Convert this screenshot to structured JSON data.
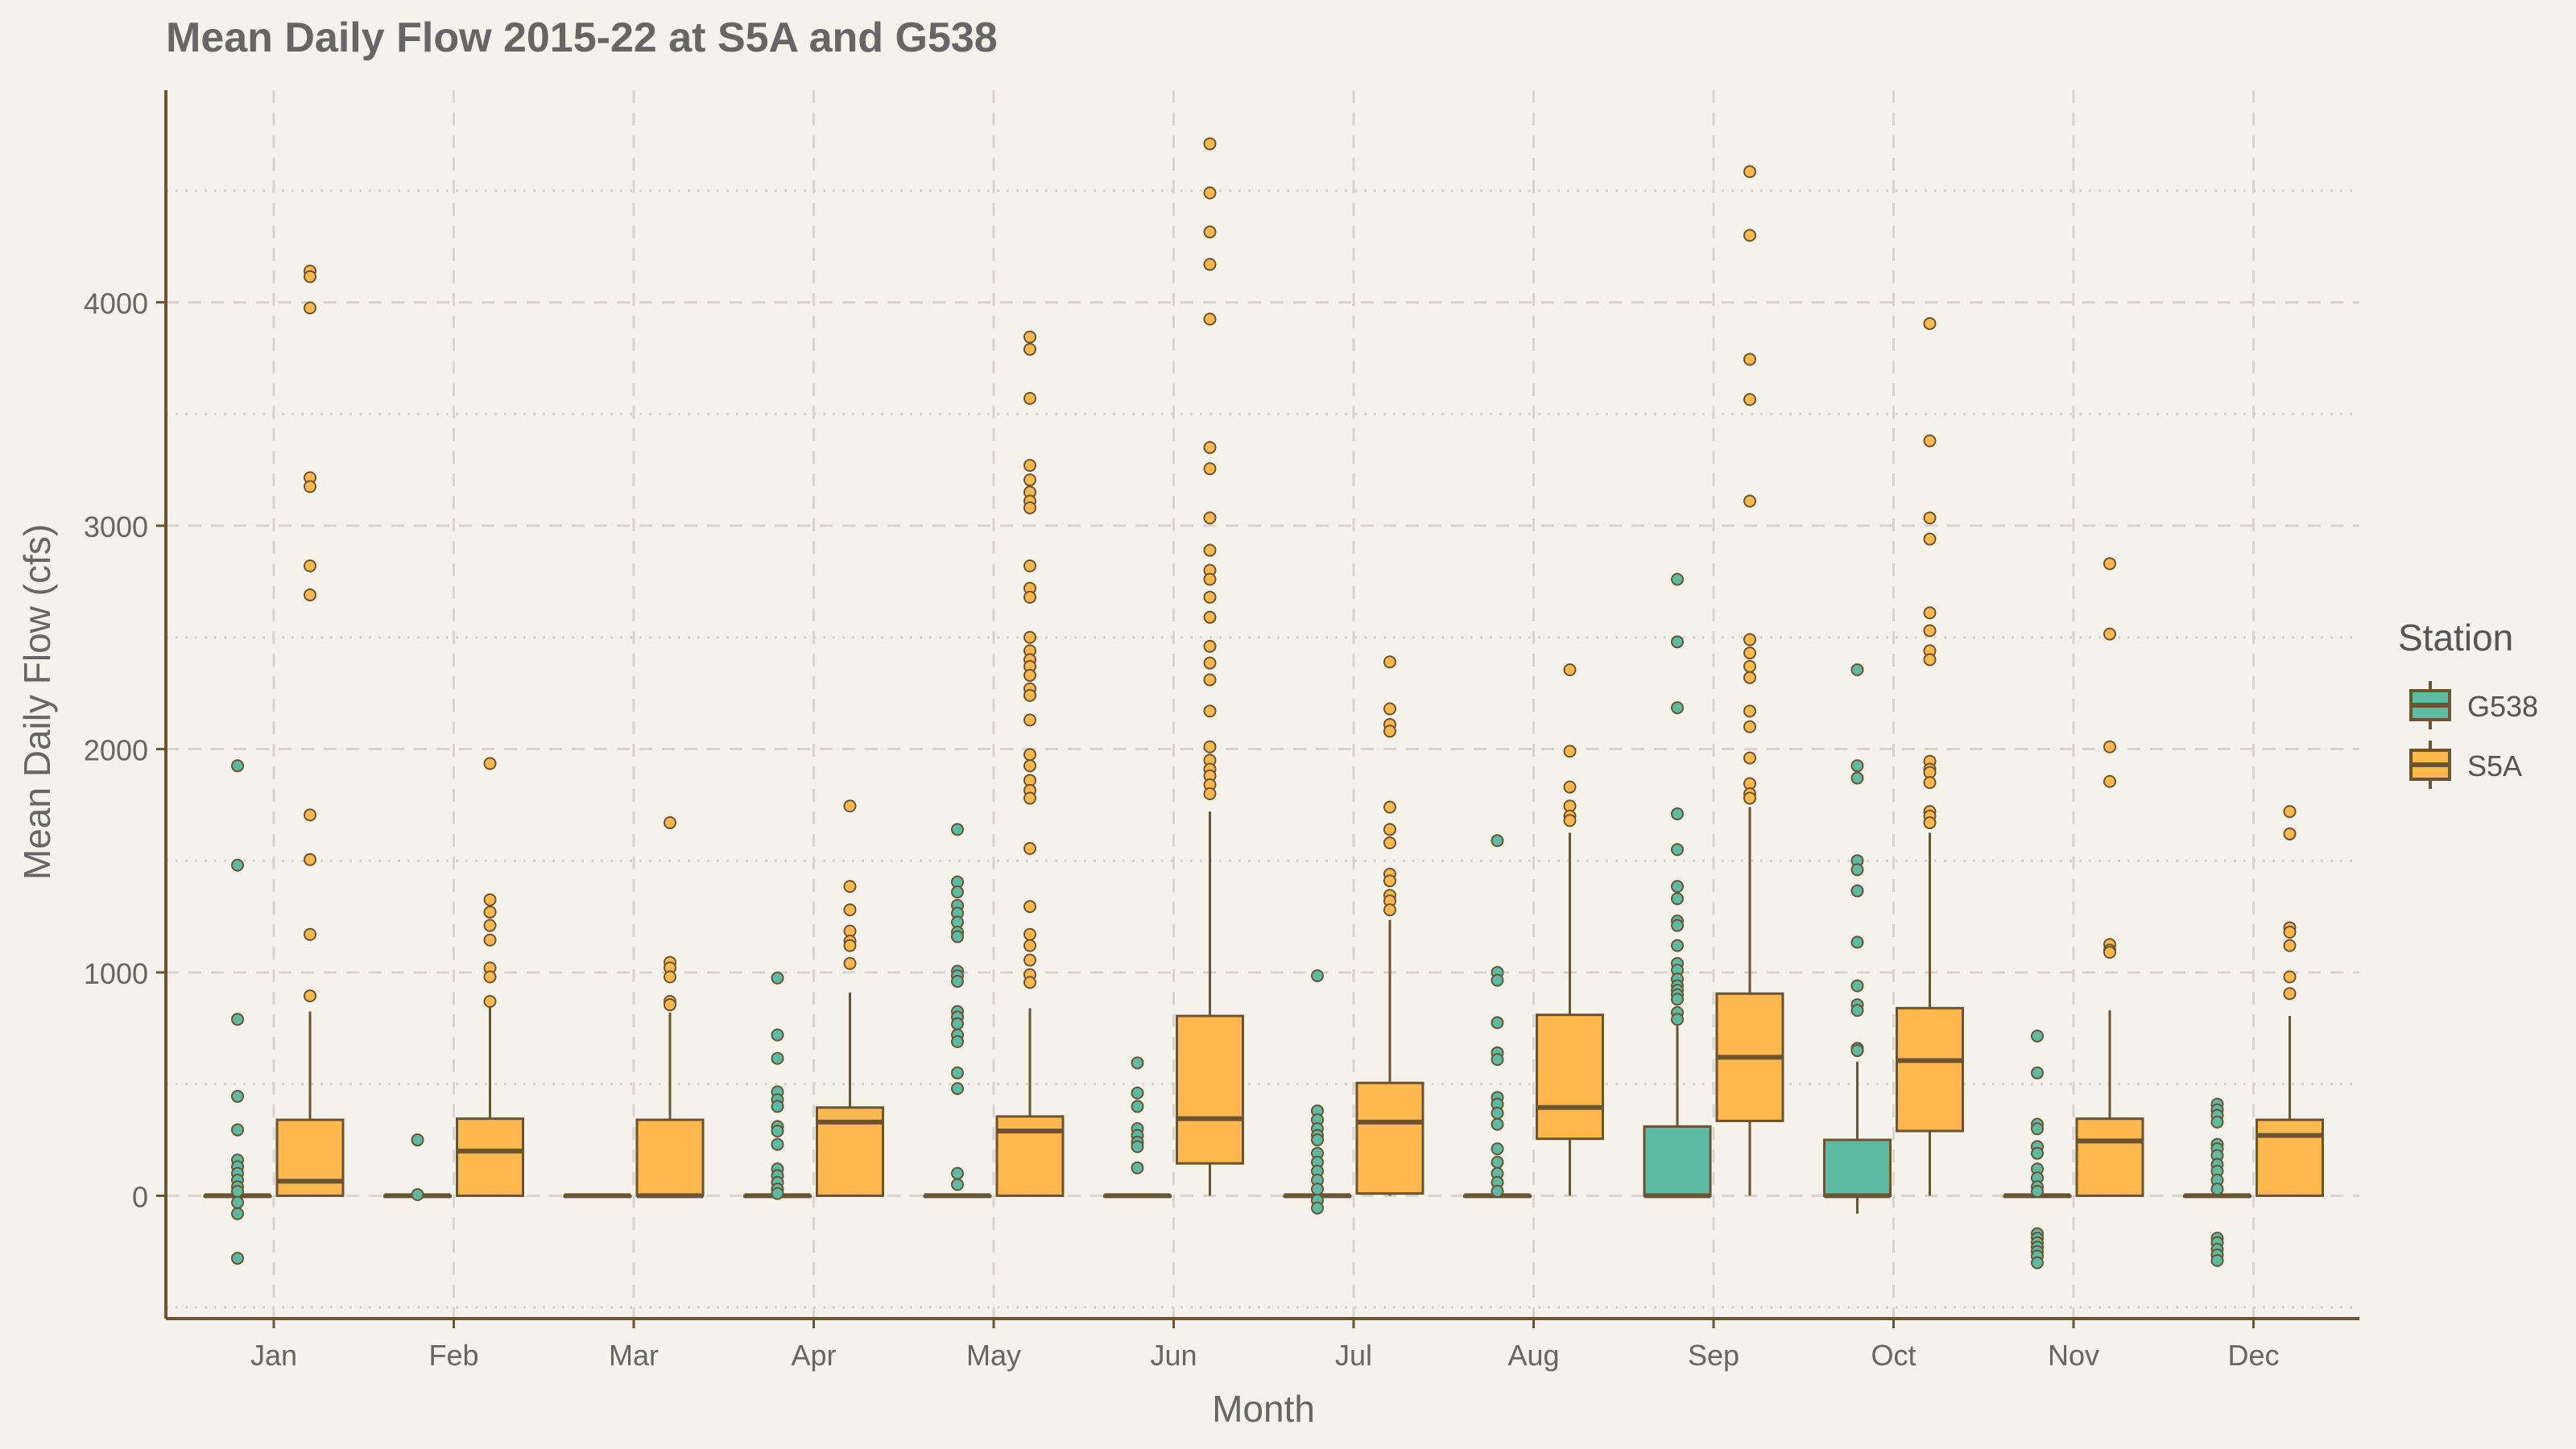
{
  "chart_data": {
    "type": "box",
    "title": "Mean Daily Flow 2015-22 at S5A and G538",
    "xlabel": "Month",
    "ylabel": "Mean Daily Flow (cfs)",
    "categories": [
      "Jan",
      "Feb",
      "Mar",
      "Apr",
      "May",
      "Jun",
      "Jul",
      "Aug",
      "Sep",
      "Oct",
      "Nov",
      "Dec"
    ],
    "yticks": [
      0,
      1000,
      2000,
      3000,
      4000
    ],
    "ylim": [
      -550,
      4950
    ],
    "grid": true,
    "legend": {
      "title": "Station",
      "position": "right",
      "entries": [
        "G538",
        "S5A"
      ]
    },
    "colors": {
      "G538": "#5dbba3",
      "S5A": "#ffb84d",
      "outline": "#6b5431",
      "background": "#f5f1eb"
    },
    "series": [
      {
        "name": "G538",
        "boxes": [
          {
            "q1": 0,
            "median": 0,
            "q3": 0,
            "lo": 0,
            "hi": 0,
            "outliers": [
              1925,
              1480,
              790,
              445,
              295,
              160,
              130,
              100,
              70,
              40,
              20,
              -30,
              -80,
              -280
            ]
          },
          {
            "q1": 0,
            "median": 0,
            "q3": 0,
            "lo": 0,
            "hi": 0,
            "outliers": [
              250,
              5
            ]
          },
          {
            "q1": 0,
            "median": 0,
            "q3": 0,
            "lo": 0,
            "hi": 0,
            "outliers": []
          },
          {
            "q1": 0,
            "median": 0,
            "q3": 0,
            "lo": 0,
            "hi": 0,
            "outliers": [
              975,
              720,
              615,
              465,
              430,
              400,
              310,
              290,
              230,
              120,
              90,
              60,
              30,
              10
            ]
          },
          {
            "q1": 0,
            "median": 0,
            "q3": 0,
            "lo": 0,
            "hi": 0,
            "outliers": [
              1640,
              1405,
              1360,
              1300,
              1265,
              1225,
              1180,
              1160,
              1005,
              985,
              960,
              825,
              800,
              770,
              720,
              690,
              550,
              480,
              100,
              50
            ]
          },
          {
            "q1": 0,
            "median": 0,
            "q3": 0,
            "lo": 0,
            "hi": 0,
            "outliers": [
              595,
              460,
              400,
              300,
              270,
              240,
              220,
              125
            ]
          },
          {
            "q1": 0,
            "median": 0,
            "q3": 0,
            "lo": 0,
            "hi": 0,
            "outliers": [
              985,
              380,
              340,
              300,
              270,
              250,
              190,
              150,
              110,
              70,
              30,
              -20,
              -55
            ]
          },
          {
            "q1": 0,
            "median": 0,
            "q3": 0,
            "lo": 0,
            "hi": 0,
            "outliers": [
              1590,
              1000,
              965,
              775,
              640,
              610,
              440,
              410,
              370,
              320,
              210,
              150,
              100,
              60,
              20
            ]
          },
          {
            "q1": 0,
            "median": 0,
            "q3": 310,
            "lo": 0,
            "hi": 760,
            "outliers": [
              2760,
              2480,
              2185,
              1710,
              1550,
              1385,
              1330,
              1230,
              1210,
              1120,
              1040,
              1010,
              970,
              940,
              920,
              900,
              880,
              820,
              790
            ]
          },
          {
            "q1": 0,
            "median": 0,
            "q3": 250,
            "lo": -80,
            "hi": 600,
            "outliers": [
              2355,
              1925,
              1870,
              1500,
              1460,
              1365,
              1135,
              940,
              855,
              830,
              660,
              650
            ]
          },
          {
            "q1": 0,
            "median": 0,
            "q3": 0,
            "lo": 0,
            "hi": 0,
            "outliers": [
              715,
              550,
              320,
              300,
              220,
              190,
              120,
              80,
              40,
              20,
              -170,
              -190,
              -210,
              -230,
              -250,
              -270,
              -300
            ]
          },
          {
            "q1": 0,
            "median": 0,
            "q3": 0,
            "lo": 0,
            "hi": 0,
            "outliers": [
              410,
              385,
              360,
              330,
              230,
              210,
              180,
              140,
              110,
              70,
              30,
              -190,
              -210,
              -240,
              -265,
              -290
            ]
          }
        ]
      },
      {
        "name": "S5A",
        "boxes": [
          {
            "q1": 0,
            "median": 65,
            "q3": 340,
            "lo": 0,
            "hi": 825,
            "outliers": [
              4140,
              4115,
              3975,
              3215,
              3175,
              2820,
              2690,
              1705,
              1505,
              1170,
              895
            ]
          },
          {
            "q1": 0,
            "median": 200,
            "q3": 345,
            "lo": 0,
            "hi": 855,
            "outliers": [
              1935,
              1325,
              1270,
              1210,
              1145,
              1020,
              980,
              870
            ]
          },
          {
            "q1": 0,
            "median": 0,
            "q3": 340,
            "lo": 0,
            "hi": 820,
            "outliers": [
              1670,
              1045,
              1020,
              980,
              870,
              855
            ]
          },
          {
            "q1": 0,
            "median": 330,
            "q3": 395,
            "lo": 0,
            "hi": 910,
            "outliers": [
              1745,
              1385,
              1280,
              1185,
              1140,
              1120,
              1040
            ]
          },
          {
            "q1": 0,
            "median": 290,
            "q3": 355,
            "lo": 0,
            "hi": 840,
            "outliers": [
              3845,
              3790,
              3570,
              3270,
              3205,
              3150,
              3110,
              3080,
              2820,
              2720,
              2680,
              2500,
              2440,
              2400,
              2370,
              2330,
              2270,
              2240,
              2130,
              1975,
              1925,
              1860,
              1815,
              1780,
              1555,
              1295,
              1170,
              1120,
              1055,
              990,
              955
            ]
          },
          {
            "q1": 145,
            "median": 345,
            "q3": 805,
            "lo": 0,
            "hi": 1720,
            "outliers": [
              4710,
              4490,
              4315,
              4170,
              3925,
              3350,
              3255,
              3035,
              2890,
              2800,
              2760,
              2680,
              2590,
              2460,
              2385,
              2310,
              2170,
              2010,
              1950,
              1910,
              1880,
              1840,
              1800
            ]
          },
          {
            "q1": 10,
            "median": 330,
            "q3": 505,
            "lo": 0,
            "hi": 1235,
            "outliers": [
              2390,
              2180,
              2110,
              2080,
              1740,
              1640,
              1580,
              1440,
              1410,
              1345,
              1320,
              1280
            ]
          },
          {
            "q1": 255,
            "median": 395,
            "q3": 810,
            "lo": 0,
            "hi": 1625,
            "outliers": [
              2355,
              1990,
              1830,
              1745,
              1700,
              1680
            ]
          },
          {
            "q1": 335,
            "median": 620,
            "q3": 905,
            "lo": 0,
            "hi": 1740,
            "outliers": [
              4585,
              4300,
              3745,
              3565,
              3110,
              2490,
              2430,
              2370,
              2320,
              2170,
              2100,
              1960,
              1845,
              1800,
              1780
            ]
          },
          {
            "q1": 290,
            "median": 605,
            "q3": 840,
            "lo": 0,
            "hi": 1625,
            "outliers": [
              3905,
              3380,
              3035,
              2940,
              2610,
              2530,
              2440,
              2400,
              1945,
              1910,
              1895,
              1850,
              1720,
              1700,
              1670
            ]
          },
          {
            "q1": 0,
            "median": 245,
            "q3": 345,
            "lo": 0,
            "hi": 830,
            "outliers": [
              2830,
              2515,
              2010,
              1855,
              1125,
              1100,
              1090
            ]
          },
          {
            "q1": 0,
            "median": 270,
            "q3": 340,
            "lo": 0,
            "hi": 805,
            "outliers": [
              1720,
              1620,
              1200,
              1180,
              1120,
              980,
              905
            ]
          }
        ]
      }
    ]
  }
}
